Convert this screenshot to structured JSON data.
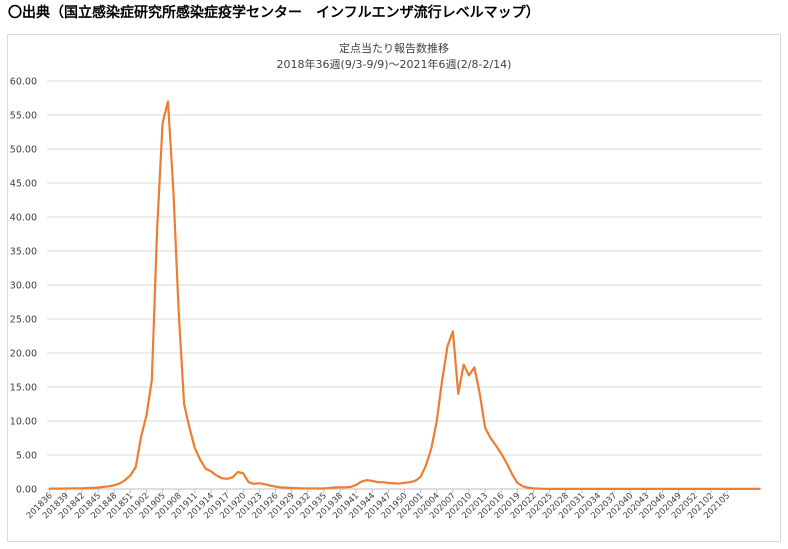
{
  "heading": {
    "mark": "〇",
    "text": "出典（国立感染症研究所感染症疫学センター　インフルエンザ流行レベルマップ）"
  },
  "chart_data": {
    "type": "line",
    "title": "定点当たり報告数推移",
    "subtitle": "2018年36週(9/3-9/9)～2021年6週(2/8-2/14)",
    "xlabel": "",
    "ylabel": "",
    "ylim": [
      0,
      60
    ],
    "yticks": [
      "0.00",
      "5.00",
      "10.00",
      "15.00",
      "20.00",
      "25.00",
      "30.00",
      "35.00",
      "40.00",
      "45.00",
      "50.00",
      "55.00",
      "60.00"
    ],
    "xtick_labels": [
      "201836",
      "201839",
      "201842",
      "201845",
      "201848",
      "201851",
      "201902",
      "201905",
      "201908",
      "201911",
      "201914",
      "201917",
      "201920",
      "201923",
      "201926",
      "201929",
      "201932",
      "201935",
      "201938",
      "201941",
      "201944",
      "201947",
      "201950",
      "202001",
      "202004",
      "202007",
      "202010",
      "202013",
      "202016",
      "202019",
      "202022",
      "202025",
      "202028",
      "202031",
      "202034",
      "202037",
      "202040",
      "202043",
      "202046",
      "202049",
      "202052",
      "202102",
      "202105"
    ],
    "grid": true,
    "legend": "none",
    "color": "#ed7d31",
    "series": [
      {
        "values": [
          0.05,
          0.05,
          0.06,
          0.07,
          0.08,
          0.09,
          0.1,
          0.13,
          0.17,
          0.22,
          0.3,
          0.4,
          0.55,
          0.8,
          1.3,
          2.0,
          3.2,
          7.7,
          10.8,
          16.0,
          38.5,
          53.8,
          57.0,
          44.0,
          26.0,
          12.5,
          9.0,
          6.0,
          4.3,
          3.0,
          2.6,
          2.0,
          1.6,
          1.5,
          1.7,
          2.5,
          2.3,
          1.0,
          0.75,
          0.85,
          0.7,
          0.5,
          0.35,
          0.25,
          0.2,
          0.15,
          0.12,
          0.1,
          0.08,
          0.08,
          0.07,
          0.07,
          0.15,
          0.22,
          0.25,
          0.25,
          0.3,
          0.6,
          1.1,
          1.3,
          1.2,
          1.0,
          1.0,
          0.9,
          0.85,
          0.8,
          0.9,
          1.0,
          1.2,
          1.8,
          3.5,
          6.0,
          10.0,
          16.0,
          21.0,
          23.2,
          14.0,
          18.3,
          16.7,
          17.9,
          14.0,
          9.0,
          7.5,
          6.4,
          5.2,
          3.8,
          2.2,
          0.9,
          0.4,
          0.2,
          0.1,
          0.05,
          0.03,
          0.02,
          0.02,
          0.02,
          0.02,
          0.02,
          0.02,
          0.02,
          0.02,
          0.02,
          0.02,
          0.02,
          0.02,
          0.02,
          0.02,
          0.02,
          0.02,
          0.02,
          0.02,
          0.02,
          0.02,
          0.02,
          0.02,
          0.02,
          0.02,
          0.02,
          0.02,
          0.02,
          0.02,
          0.02,
          0.02,
          0.02,
          0.02,
          0.02,
          0.02,
          0.02,
          0.02,
          0.02,
          0.02,
          0.02,
          0.02
        ]
      }
    ]
  }
}
